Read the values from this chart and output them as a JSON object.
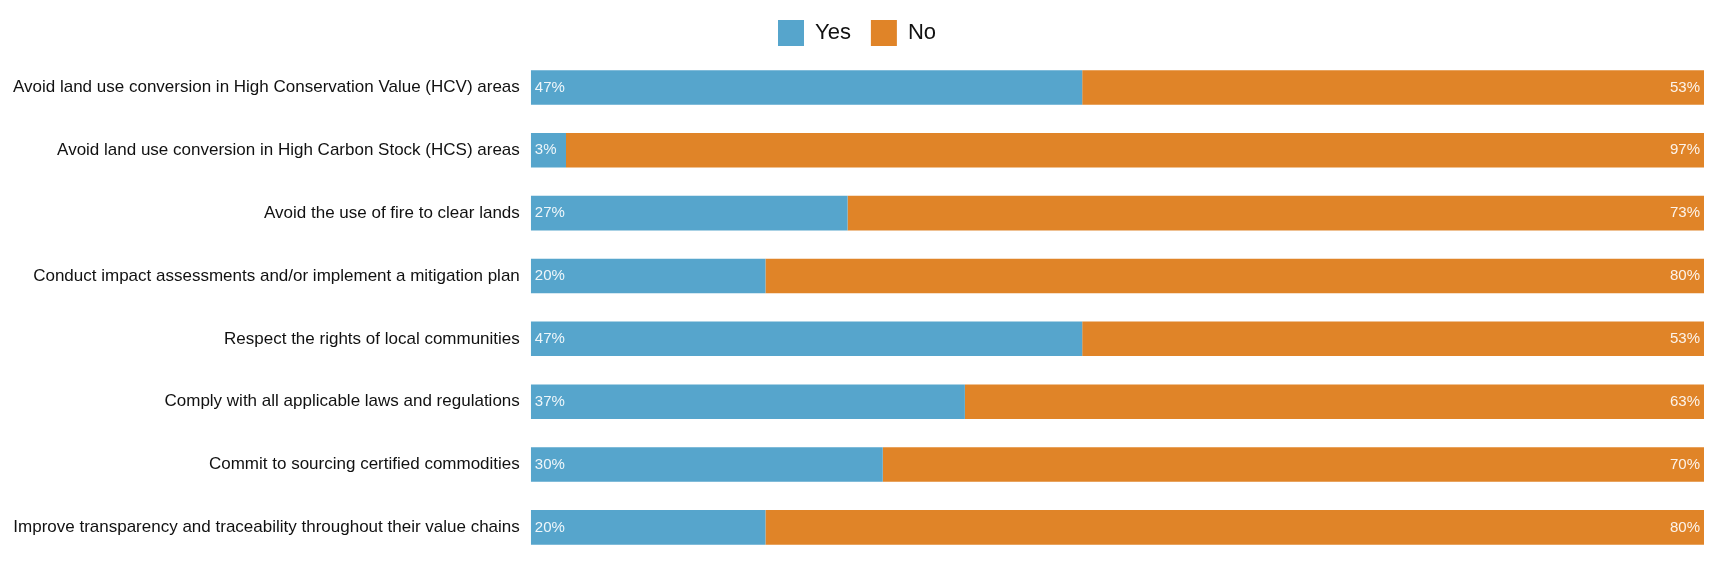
{
  "chart_data": {
    "type": "bar",
    "orientation": "horizontal",
    "stacked": true,
    "legend": "top",
    "categories": [
      "Avoid land use conversion in High Conservation Value (HCV) areas",
      "Avoid land use conversion in High Carbon Stock (HCS) areas",
      "Avoid the use of fire to clear lands",
      "Conduct impact assessments and/or implement a mitigation plan",
      "Respect the rights of local communities",
      "Comply with all applicable laws and regulations",
      "Commit to sourcing certified commodities",
      "Improve transparency and traceability throughout their value chains"
    ],
    "series": [
      {
        "name": "Yes",
        "color": "#56a5cc",
        "values": [
          47,
          3,
          27,
          20,
          47,
          37,
          30,
          20
        ],
        "value_labels": [
          "47%",
          "3%",
          "27%",
          "20%",
          "47%",
          "37%",
          "30%",
          "20%"
        ]
      },
      {
        "name": "No",
        "color": "#e08428",
        "values": [
          53,
          97,
          73,
          80,
          53,
          63,
          70,
          80
        ],
        "value_labels": [
          "53%",
          "97%",
          "73%",
          "80%",
          "53%",
          "63%",
          "70%",
          "80%"
        ]
      }
    ]
  }
}
